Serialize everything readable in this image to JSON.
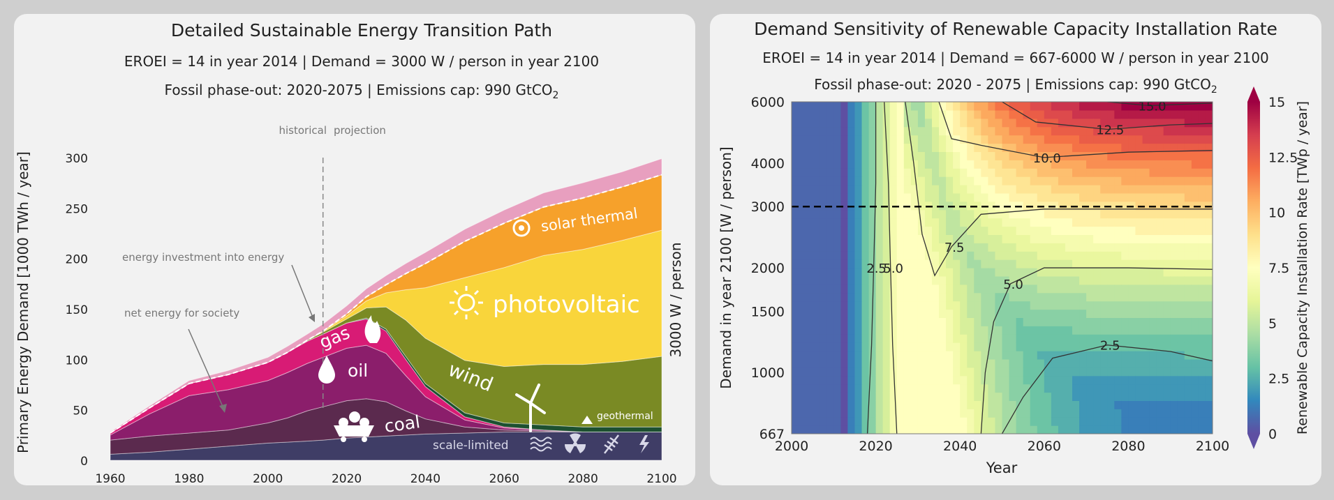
{
  "chart_data": [
    {
      "type": "area",
      "title": "Detailed Sustainable Energy Transition Path",
      "subtitle_line1": "EROEI = 14 in year 2014   |   Demand = 3000 W / person in year 2100",
      "subtitle_line2_prefix": "Fossil phase-out: 2020-2075   |   Emissions cap: 990 GtCO",
      "subtitle_line2_sub": "2",
      "ylabel": "Primary Energy Demand [1000 TWh / year]",
      "right_label": "3000 W / person",
      "xlim": [
        1960,
        2100
      ],
      "ylim": [
        0,
        300
      ],
      "x_ticks": [
        1960,
        1980,
        2000,
        2020,
        2040,
        2060,
        2080,
        2100
      ],
      "y_ticks": [
        0,
        50,
        100,
        150,
        200,
        250,
        300
      ],
      "x": [
        1960,
        1970,
        1980,
        1990,
        2000,
        2005,
        2010,
        2014,
        2020,
        2025,
        2030,
        2035,
        2040,
        2050,
        2060,
        2070,
        2080,
        2090,
        2100
      ],
      "series": [
        {
          "name": "scale-limited",
          "color": "#3f3d66",
          "values": [
            6,
            8,
            11,
            14,
            17,
            18,
            19,
            20,
            22,
            23,
            24,
            25,
            26,
            27,
            28,
            28,
            28,
            28,
            28
          ]
        },
        {
          "name": "coal",
          "color": "#5b2a4e",
          "values": [
            14,
            16,
            16,
            16,
            20,
            24,
            30,
            33,
            37,
            38,
            34,
            24,
            15,
            6,
            2,
            1,
            0,
            0,
            0
          ]
        },
        {
          "name": "oil",
          "color": "#8b1e6b",
          "values": [
            5,
            22,
            37,
            40,
            42,
            45,
            47,
            49,
            52,
            53,
            48,
            35,
            22,
            7,
            2,
            1,
            0,
            0,
            0
          ]
        },
        {
          "name": "gas",
          "color": "#d81b75",
          "values": [
            2,
            6,
            12,
            15,
            18,
            20,
            22,
            23,
            25,
            26,
            22,
            16,
            10,
            3,
            1,
            0,
            0,
            0,
            0
          ]
        },
        {
          "name": "geothermal",
          "color": "#1d5030",
          "values": [
            0,
            0,
            0,
            0,
            0,
            0,
            0,
            0,
            0,
            1,
            2,
            3,
            3,
            4,
            4,
            5,
            5,
            5,
            5
          ]
        },
        {
          "name": "wind",
          "color": "#7a8a24",
          "values": [
            0,
            0,
            0,
            0,
            0,
            0,
            1,
            2,
            4,
            10,
            22,
            36,
            45,
            52,
            56,
            60,
            62,
            65,
            70
          ]
        },
        {
          "name": "photovoltaic",
          "color": "#f9d53b",
          "values": [
            0,
            0,
            0,
            0,
            0,
            0,
            0,
            1,
            3,
            7,
            14,
            30,
            50,
            82,
            98,
            108,
            114,
            120,
            125
          ]
        },
        {
          "name": "solar thermal",
          "color": "#f6a12b",
          "values": [
            0,
            0,
            0,
            0,
            0,
            0,
            0,
            0,
            2,
            4,
            8,
            16,
            24,
            36,
            44,
            48,
            51,
            53,
            55
          ]
        },
        {
          "name": "energy investment into energy",
          "color": "#e89fbf",
          "values": [
            1,
            2,
            3,
            4,
            5,
            6,
            6,
            7,
            8,
            8,
            9,
            10,
            11,
            12,
            13,
            14,
            15,
            15,
            16
          ]
        }
      ],
      "historical_label": "historical",
      "projection_label": "projection",
      "divider_year": 2014,
      "annotations": {
        "energy_investment": "energy investment into energy",
        "net_energy": "net energy for society",
        "gas": "gas",
        "oil": "oil",
        "coal": "coal",
        "wind": "wind",
        "photovoltaic": "photovoltaic",
        "solar_thermal": "solar thermal",
        "geothermal": "geothermal",
        "scale_limited": "scale-limited"
      }
    },
    {
      "type": "heatmap",
      "title": "Demand Sensitivity of Renewable Capacity Installation Rate",
      "subtitle_line1": "EROEI = 14 in year 2014   |   Demand = 667-6000 W / person in year 2100",
      "subtitle_line2_prefix": "Fossil phase-out: 2020 - 2075   |   Emissions cap: 990 GtCO",
      "subtitle_line2_sub": "2",
      "xlabel": "Year",
      "ylabel": "Demand in year 2100 [W / person]",
      "colorbar_label": "Renewable Capacity Installation Rate [TWp / year]",
      "xlim": [
        2000,
        2100
      ],
      "ylim": [
        667,
        6000
      ],
      "log_y": true,
      "x_ticks": [
        2000,
        2020,
        2040,
        2060,
        2080,
        2100
      ],
      "y_ticks": [
        667,
        1000,
        1500,
        2000,
        3000,
        4000,
        6000
      ],
      "colorbar_ticks": [
        "0",
        "2.5",
        "5",
        "7.5",
        "10",
        "12.5",
        "15"
      ],
      "colorbar_range": [
        0,
        15
      ],
      "reference_demand": 3000,
      "contour_levels": [
        {
          "label": "2.5",
          "points": [
            [
              2018,
              667
            ],
            [
              2019,
              1200
            ],
            [
              2019.5,
              2000
            ],
            [
              2020,
              3500
            ],
            [
              2020,
              6000
            ]
          ]
        },
        {
          "label": "5.0",
          "points": [
            [
              2025,
              667
            ],
            [
              2024,
              1200
            ],
            [
              2023.5,
              2000
            ],
            [
              2023,
              3500
            ],
            [
              2022,
              6000
            ]
          ]
        },
        {
          "label": "7.5",
          "points": [
            [
              2027,
              6000
            ],
            [
              2029,
              4000
            ],
            [
              2031,
              2500
            ],
            [
              2034,
              1900
            ],
            [
              2038,
              2300
            ],
            [
              2045,
              2850
            ],
            [
              2060,
              2950
            ],
            [
              2080,
              2950
            ],
            [
              2100,
              2950
            ]
          ]
        },
        {
          "label": "10.0",
          "points": [
            [
              2035,
              6000
            ],
            [
              2038,
              4700
            ],
            [
              2045,
              4500
            ],
            [
              2060,
              4150
            ],
            [
              2080,
              4300
            ],
            [
              2100,
              4350
            ]
          ]
        },
        {
          "label": "12.5",
          "points": [
            [
              2050,
              6000
            ],
            [
              2058,
              5250
            ],
            [
              2075,
              5000
            ],
            [
              2090,
              5150
            ],
            [
              2100,
              5200
            ]
          ]
        },
        {
          "label": "15.0",
          "points": [
            [
              2075,
              6000
            ],
            [
              2085,
              5850
            ],
            [
              2100,
              5950
            ]
          ]
        },
        {
          "label": "5.0",
          "points": [
            [
              2045,
              667
            ],
            [
              2046,
              1000
            ],
            [
              2048,
              1400
            ],
            [
              2052,
              1800
            ],
            [
              2060,
              2000
            ],
            [
              2080,
              2000
            ],
            [
              2100,
              1980
            ]
          ]
        },
        {
          "label": "2.5",
          "points": [
            [
              2050,
              667
            ],
            [
              2055,
              850
            ],
            [
              2062,
              1100
            ],
            [
              2075,
              1200
            ],
            [
              2090,
              1150
            ],
            [
              2100,
              1080
            ]
          ]
        }
      ]
    }
  ]
}
